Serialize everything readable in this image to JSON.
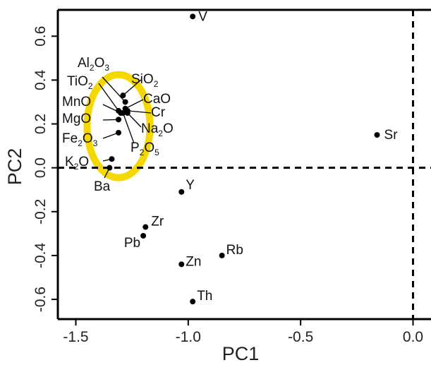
{
  "chart_data": {
    "type": "scatter",
    "xlabel": "PC1",
    "ylabel": "PC2",
    "xlim": [
      -1.58,
      0.08
    ],
    "ylim": [
      -0.69,
      0.72
    ],
    "x_ticks": [
      {
        "value": -1.5,
        "label": "-1.5"
      },
      {
        "value": -1.0,
        "label": "-1.0"
      },
      {
        "value": -0.5,
        "label": "-0.5"
      },
      {
        "value": 0.0,
        "label": "0.0"
      }
    ],
    "y_ticks": [
      {
        "value": -0.6,
        "label": "-0.6"
      },
      {
        "value": -0.4,
        "label": "-0.4"
      },
      {
        "value": -0.2,
        "label": "-0.2"
      },
      {
        "value": 0.0,
        "label": "0.0"
      },
      {
        "value": 0.2,
        "label": "0.2"
      },
      {
        "value": 0.4,
        "label": "0.4"
      },
      {
        "value": 0.6,
        "label": "0.6"
      }
    ],
    "reference_lines": {
      "x": 0.0,
      "y": 0.0,
      "style": "dashed"
    },
    "grid": false,
    "highlight_ellipse": {
      "cx": -1.31,
      "cy": 0.19,
      "rx": 0.14,
      "ry": 0.235,
      "color": "#f5d800"
    },
    "points": [
      {
        "name": "V",
        "label": "V",
        "x": -0.98,
        "y": 0.69
      },
      {
        "name": "Sr",
        "label": "Sr",
        "x": -0.16,
        "y": 0.15
      },
      {
        "name": "Y",
        "label": "Y",
        "x": -1.03,
        "y": -0.11
      },
      {
        "name": "Zr",
        "label": "Zr",
        "x": -1.19,
        "y": -0.27
      },
      {
        "name": "Pb",
        "label": "Pb",
        "x": -1.2,
        "y": -0.31
      },
      {
        "name": "Rb",
        "label": "Rb",
        "x": -0.85,
        "y": -0.4
      },
      {
        "name": "Zn",
        "label": "Zn",
        "x": -1.03,
        "y": -0.44
      },
      {
        "name": "Th",
        "label": "Th",
        "x": -0.98,
        "y": -0.61
      },
      {
        "name": "SiO2",
        "label": "SiO",
        "sub": "2",
        "x": -1.29,
        "y": 0.33
      },
      {
        "name": "Al2O3",
        "label": "Al",
        "sub": "2",
        "label2": "O",
        "sub2": "3",
        "x": -1.28,
        "y": 0.3
      },
      {
        "name": "CaO",
        "label": "CaO",
        "x": -1.28,
        "y": 0.27
      },
      {
        "name": "TiO2",
        "label": "TiO",
        "sub": "2",
        "x": -1.31,
        "y": 0.26
      },
      {
        "name": "Cr",
        "label": "Cr",
        "x": -1.27,
        "y": 0.26
      },
      {
        "name": "MnO",
        "label": "MnO",
        "x": -1.3,
        "y": 0.25
      },
      {
        "name": "Na2O",
        "label": "Na",
        "sub": "2",
        "label2": "O",
        "x": -1.27,
        "y": 0.25
      },
      {
        "name": "MgO",
        "label": "MgO",
        "x": -1.31,
        "y": 0.22
      },
      {
        "name": "P2O5",
        "label": "P",
        "sub": "2",
        "label2": "O",
        "sub2": "5",
        "x": -1.29,
        "y": 0.25
      },
      {
        "name": "Fe2O3",
        "label": "Fe",
        "sub": "2",
        "label2": "O",
        "sub2": "3",
        "x": -1.31,
        "y": 0.16
      },
      {
        "name": "K2O",
        "label": "K",
        "sub": "2",
        "label2": "O",
        "x": -1.34,
        "y": 0.04
      },
      {
        "name": "Ba",
        "label": "Ba",
        "x": -1.35,
        "y": 0.0
      }
    ]
  }
}
